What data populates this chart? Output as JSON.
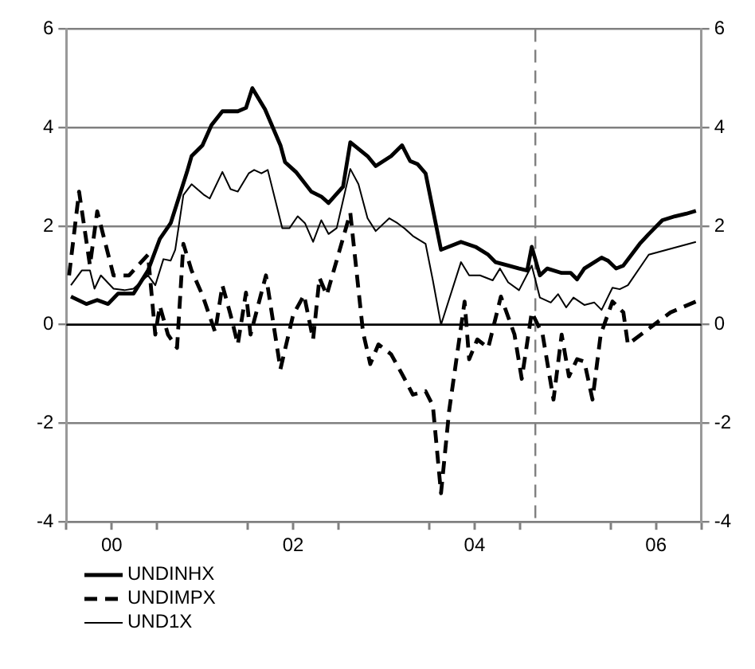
{
  "chart_data": {
    "type": "line",
    "xlim": [
      -0.5,
      6.5
    ],
    "xticks": [
      {
        "value": -0.5,
        "label": null
      },
      {
        "value": 0,
        "label": "00"
      },
      {
        "value": 0.5,
        "label": null
      },
      {
        "value": 1.5,
        "label": null
      },
      {
        "value": 2,
        "label": "02"
      },
      {
        "value": 2.5,
        "label": null
      },
      {
        "value": 3.5,
        "label": null
      },
      {
        "value": 4,
        "label": "04"
      },
      {
        "value": 4.5,
        "label": null
      },
      {
        "value": 5.5,
        "label": null
      },
      {
        "value": 6,
        "label": "06"
      },
      {
        "value": 6.5,
        "label": null
      }
    ],
    "ylim": [
      -4,
      6
    ],
    "yticks": [
      -4,
      -2,
      0,
      2,
      4,
      6
    ],
    "y2lim": [
      -4,
      6
    ],
    "y2ticks": [
      -4,
      -2,
      0,
      2,
      4,
      6
    ],
    "grid": "y",
    "legend": "bottom left",
    "ref_lines": [
      {
        "axis": "y",
        "value": 0,
        "color": "#000000",
        "line_style": "solid"
      },
      {
        "axis": "x",
        "value": 4.67,
        "color": "#808080",
        "line_style": "dashed"
      }
    ],
    "series": [
      {
        "name": "UNDINHX",
        "color": "#000000",
        "line_style": "solid",
        "x": [
          -0.45,
          -0.28,
          -0.16,
          -0.04,
          0.07,
          0.24,
          0.4,
          0.53,
          0.65,
          0.83,
          0.88,
          1.0,
          1.1,
          1.22,
          1.39,
          1.48,
          1.55,
          1.69,
          1.86,
          1.91,
          2.03,
          2.2,
          2.31,
          2.39,
          2.55,
          2.63,
          2.82,
          2.91,
          3.08,
          3.2,
          3.29,
          3.37,
          3.46,
          3.63,
          3.85,
          4.01,
          4.15,
          4.23,
          4.37,
          4.49,
          4.58,
          4.63,
          4.72,
          4.8,
          4.96,
          5.06,
          5.13,
          5.21,
          5.4,
          5.47,
          5.56,
          5.64,
          5.82,
          5.92,
          6.07,
          6.21,
          6.33,
          6.44
        ],
        "values": [
          0.57,
          0.42,
          0.5,
          0.42,
          0.63,
          0.63,
          1.1,
          1.74,
          2.06,
          3.1,
          3.42,
          3.64,
          4.05,
          4.33,
          4.33,
          4.4,
          4.8,
          4.37,
          3.64,
          3.3,
          3.1,
          2.7,
          2.6,
          2.47,
          2.8,
          3.7,
          3.42,
          3.22,
          3.42,
          3.64,
          3.32,
          3.26,
          3.07,
          1.52,
          1.68,
          1.58,
          1.42,
          1.27,
          1.2,
          1.14,
          1.1,
          1.58,
          1.0,
          1.14,
          1.05,
          1.05,
          0.92,
          1.14,
          1.36,
          1.3,
          1.14,
          1.2,
          1.64,
          1.84,
          2.12,
          2.2,
          2.25,
          2.31
        ]
      },
      {
        "name": "UNDIMPX",
        "color": "#000000",
        "line_style": "dashed",
        "x": [
          -0.47,
          -0.36,
          -0.24,
          -0.16,
          0.02,
          0.19,
          0.24,
          0.4,
          0.48,
          0.53,
          0.62,
          0.72,
          0.79,
          0.88,
          1.0,
          1.14,
          1.22,
          1.31,
          1.39,
          1.48,
          1.53,
          1.7,
          1.86,
          2.0,
          2.12,
          2.22,
          2.29,
          2.37,
          2.51,
          2.63,
          2.77,
          2.85,
          2.94,
          3.08,
          3.2,
          3.32,
          3.46,
          3.54,
          3.63,
          3.72,
          3.8,
          3.89,
          3.94,
          4.03,
          4.15,
          4.29,
          4.44,
          4.52,
          4.63,
          4.75,
          4.87,
          4.96,
          5.04,
          5.13,
          5.21,
          5.3,
          5.39,
          5.52,
          5.64,
          5.69,
          5.87,
          6.16,
          6.44
        ],
        "values": [
          1.0,
          2.7,
          1.2,
          2.3,
          1.0,
          1.0,
          1.1,
          1.42,
          -0.2,
          0.38,
          -0.2,
          -0.47,
          1.64,
          1.1,
          0.6,
          -0.15,
          0.8,
          0.2,
          -0.4,
          0.65,
          -0.2,
          1.0,
          -0.9,
          0.2,
          0.6,
          -0.3,
          0.95,
          0.6,
          1.5,
          2.27,
          -0.15,
          -0.8,
          -0.4,
          -0.6,
          -1.0,
          -1.42,
          -1.35,
          -1.64,
          -3.42,
          -1.74,
          -0.7,
          0.47,
          -0.7,
          -0.3,
          -0.47,
          0.57,
          -0.2,
          -1.1,
          0.25,
          -0.2,
          -1.52,
          -0.2,
          -1.05,
          -0.7,
          -0.75,
          -1.52,
          -0.2,
          0.47,
          0.25,
          -0.4,
          -0.15,
          0.25,
          0.47
        ]
      },
      {
        "name": "UND1X",
        "color": "#000000",
        "line_style": "solid",
        "x": [
          -0.45,
          -0.33,
          -0.24,
          -0.19,
          -0.12,
          0.02,
          0.14,
          0.24,
          0.4,
          0.48,
          0.57,
          0.65,
          0.7,
          0.79,
          0.88,
          1.02,
          1.08,
          1.22,
          1.31,
          1.39,
          1.51,
          1.57,
          1.65,
          1.72,
          1.88,
          1.96,
          2.05,
          2.13,
          2.22,
          2.31,
          2.39,
          2.48,
          2.63,
          2.72,
          2.82,
          2.91,
          3.06,
          3.15,
          3.23,
          3.32,
          3.46,
          3.54,
          3.63,
          3.85,
          3.94,
          4.06,
          4.2,
          4.28,
          4.37,
          4.49,
          4.63,
          4.72,
          4.84,
          4.92,
          5.01,
          5.09,
          5.21,
          5.32,
          5.4,
          5.52,
          5.6,
          5.69,
          5.92,
          6.44
        ],
        "values": [
          0.8,
          1.1,
          1.1,
          0.73,
          1.0,
          0.73,
          0.7,
          0.73,
          1.0,
          0.8,
          1.33,
          1.3,
          1.52,
          2.63,
          2.85,
          2.63,
          2.56,
          3.1,
          2.75,
          2.7,
          3.07,
          3.14,
          3.07,
          3.14,
          1.96,
          1.96,
          2.2,
          2.06,
          1.68,
          2.12,
          1.84,
          1.96,
          3.16,
          2.85,
          2.16,
          1.9,
          2.16,
          2.06,
          1.95,
          1.8,
          1.64,
          0.9,
          0.0,
          1.27,
          1.0,
          1.0,
          0.9,
          1.14,
          0.86,
          0.7,
          1.2,
          0.55,
          0.45,
          0.62,
          0.35,
          0.55,
          0.4,
          0.45,
          0.3,
          0.75,
          0.72,
          0.8,
          1.42,
          1.68
        ]
      }
    ]
  }
}
